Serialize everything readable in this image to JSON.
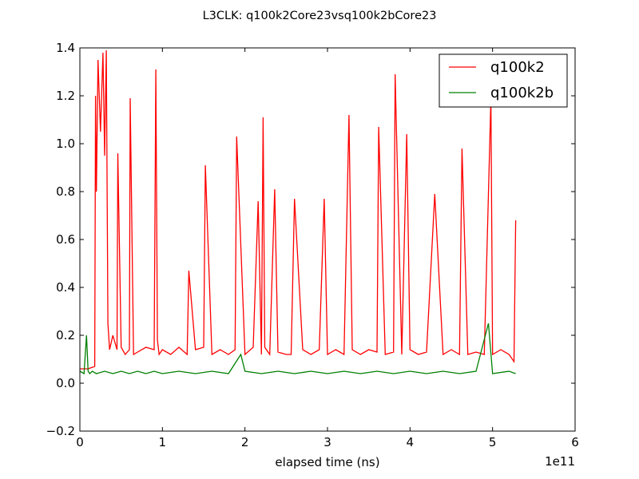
{
  "chart_data": {
    "type": "line",
    "title": "L3CLK: q100k2Core23vsq100k2bCore23",
    "xlabel": "elapsed time (ns)",
    "ylabel": "",
    "x_offset_label": "1e11",
    "xlim": [
      0,
      6
    ],
    "ylim": [
      -0.2,
      1.4
    ],
    "xticks": [
      0,
      1,
      2,
      3,
      4,
      5,
      6
    ],
    "xtick_labels": [
      "0",
      "1",
      "2",
      "3",
      "4",
      "5",
      "6"
    ],
    "yticks": [
      -0.2,
      0.0,
      0.2,
      0.4,
      0.6,
      0.8,
      1.0,
      1.2,
      1.4
    ],
    "ytick_labels": [
      "−0.2",
      "0.0",
      "0.2",
      "0.4",
      "0.6",
      "0.8",
      "1.0",
      "1.2",
      "1.4"
    ],
    "grid": false,
    "legend_position": "top-right",
    "series": [
      {
        "name": "q100k2",
        "color": "#ff0000",
        "x": [
          0.0,
          0.1,
          0.18,
          0.19,
          0.2,
          0.22,
          0.25,
          0.28,
          0.3,
          0.32,
          0.34,
          0.36,
          0.4,
          0.45,
          0.46,
          0.5,
          0.55,
          0.6,
          0.61,
          0.65,
          0.7,
          0.8,
          0.9,
          0.92,
          0.94,
          0.96,
          1.0,
          1.1,
          1.2,
          1.3,
          1.32,
          1.4,
          1.5,
          1.52,
          1.6,
          1.7,
          1.8,
          1.88,
          1.9,
          2.0,
          2.1,
          2.16,
          2.2,
          2.22,
          2.24,
          2.3,
          2.36,
          2.4,
          2.5,
          2.56,
          2.6,
          2.7,
          2.8,
          2.9,
          2.96,
          3.0,
          3.1,
          3.2,
          3.26,
          3.3,
          3.4,
          3.5,
          3.6,
          3.62,
          3.7,
          3.8,
          3.82,
          3.9,
          3.96,
          4.0,
          4.1,
          4.2,
          4.3,
          4.4,
          4.5,
          4.6,
          4.63,
          4.7,
          4.8,
          4.9,
          4.98,
          5.0,
          5.1,
          5.2,
          5.26,
          5.28
        ],
        "y": [
          0.06,
          0.06,
          0.07,
          1.2,
          0.8,
          1.35,
          1.05,
          1.38,
          0.95,
          1.39,
          0.25,
          0.14,
          0.2,
          0.14,
          0.96,
          0.15,
          0.12,
          0.14,
          1.19,
          0.12,
          0.13,
          0.15,
          0.14,
          1.31,
          0.18,
          0.12,
          0.14,
          0.12,
          0.15,
          0.12,
          0.47,
          0.14,
          0.15,
          0.91,
          0.12,
          0.14,
          0.12,
          0.14,
          1.03,
          0.12,
          0.15,
          0.76,
          0.12,
          1.11,
          0.15,
          0.12,
          0.81,
          0.13,
          0.12,
          0.12,
          0.77,
          0.14,
          0.12,
          0.14,
          0.77,
          0.12,
          0.14,
          0.12,
          1.12,
          0.14,
          0.12,
          0.14,
          0.13,
          1.07,
          0.12,
          0.13,
          1.29,
          0.12,
          1.04,
          0.14,
          0.12,
          0.13,
          0.79,
          0.12,
          0.14,
          0.12,
          0.98,
          0.12,
          0.13,
          0.12,
          1.19,
          0.12,
          0.14,
          0.12,
          0.09,
          0.68
        ]
      },
      {
        "name": "q100k2b",
        "color": "#008000",
        "x": [
          0.0,
          0.05,
          0.08,
          0.1,
          0.12,
          0.15,
          0.2,
          0.3,
          0.4,
          0.5,
          0.6,
          0.7,
          0.8,
          0.9,
          1.0,
          1.2,
          1.4,
          1.6,
          1.8,
          1.95,
          2.0,
          2.2,
          2.4,
          2.6,
          2.8,
          3.0,
          3.2,
          3.4,
          3.6,
          3.8,
          4.0,
          4.2,
          4.4,
          4.6,
          4.8,
          4.95,
          5.0,
          5.2,
          5.28
        ],
        "y": [
          0.05,
          0.04,
          0.2,
          0.05,
          0.04,
          0.05,
          0.04,
          0.05,
          0.04,
          0.05,
          0.04,
          0.05,
          0.04,
          0.05,
          0.04,
          0.05,
          0.04,
          0.05,
          0.04,
          0.12,
          0.05,
          0.04,
          0.05,
          0.04,
          0.05,
          0.04,
          0.05,
          0.04,
          0.05,
          0.04,
          0.05,
          0.04,
          0.05,
          0.04,
          0.05,
          0.25,
          0.04,
          0.05,
          0.04
        ]
      }
    ]
  }
}
